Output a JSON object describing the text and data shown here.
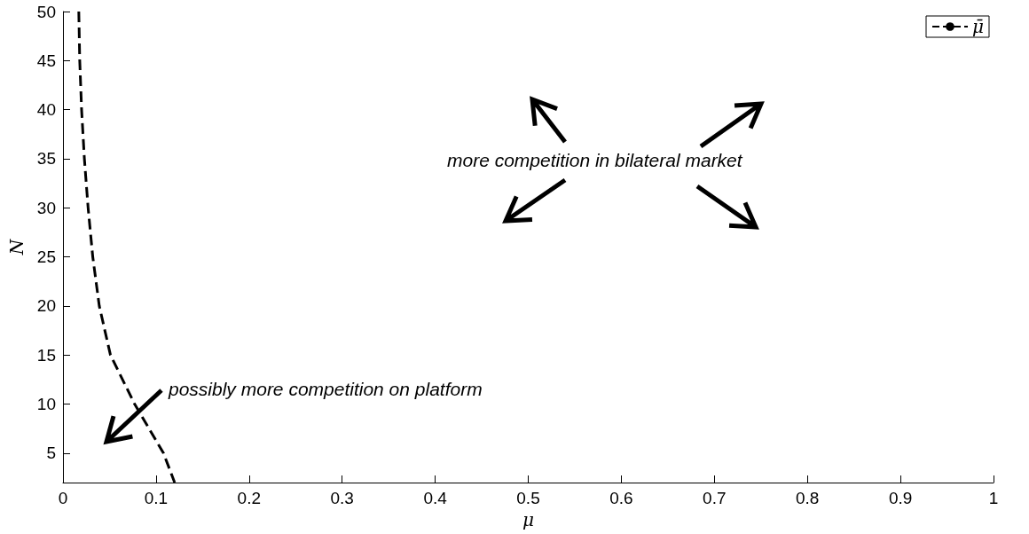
{
  "chart_data": {
    "type": "line",
    "xlabel": "μ",
    "ylabel": "N",
    "x": [
      0.017,
      0.018,
      0.02,
      0.023,
      0.027,
      0.032,
      0.039,
      0.051,
      0.077,
      0.108,
      0.12
    ],
    "series": [
      {
        "name": "μ̄",
        "color": "#000000",
        "values": [
          50,
          45,
          40,
          35,
          30,
          25,
          20,
          15,
          10,
          5,
          2
        ]
      }
    ],
    "xlim": [
      0,
      1
    ],
    "ylim": [
      2,
      50
    ],
    "xticks": [
      0,
      0.1,
      0.2,
      0.3,
      0.4,
      0.5,
      0.6,
      0.7,
      0.8,
      0.9,
      1
    ],
    "yticks": [
      5,
      10,
      15,
      20,
      25,
      30,
      35,
      40,
      45,
      50
    ],
    "grid": false,
    "legend": "top right",
    "marker": "none",
    "line_style": "dashed",
    "annotations": [
      "more competition in bilateral market",
      "possibly more competition on platform"
    ]
  }
}
